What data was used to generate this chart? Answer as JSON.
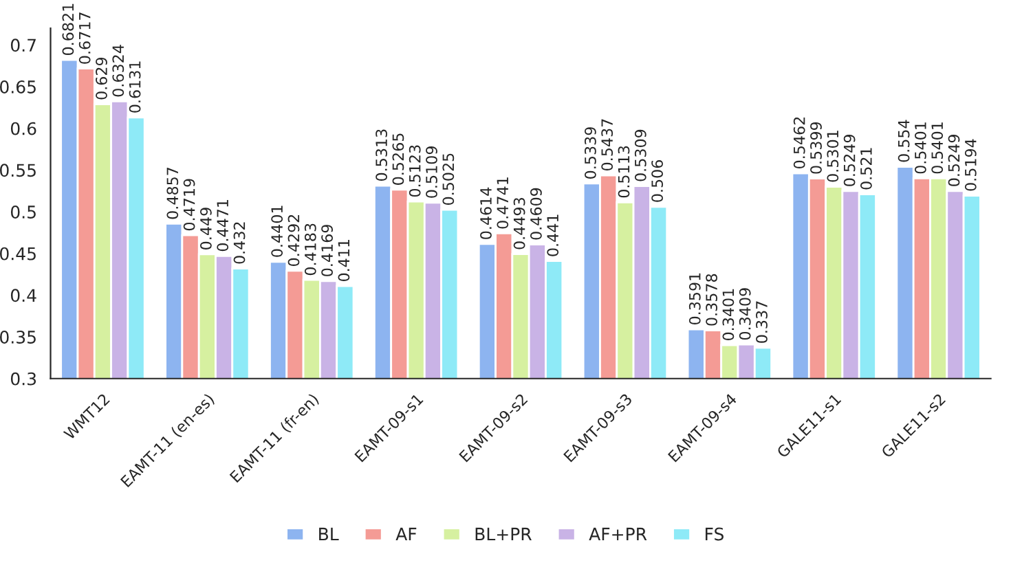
{
  "chart_data": {
    "type": "bar",
    "categories": [
      "WMT12",
      "EAMT-11 (en-es)",
      "EAMT-11 (fr-en)",
      "EAMT-09-s1",
      "EAMT-09-s2",
      "EAMT-09-s3",
      "EAMT-09-s4",
      "GALE11-s1",
      "GALE11-s2"
    ],
    "series": [
      {
        "name": "BL",
        "color": "#8db4f0",
        "values": [
          0.6821,
          0.4857,
          0.4401,
          0.5313,
          0.4614,
          0.5339,
          0.3591,
          0.5462,
          0.554
        ]
      },
      {
        "name": "AF",
        "color": "#f49b95",
        "values": [
          0.6717,
          0.4719,
          0.4292,
          0.5265,
          0.4741,
          0.5437,
          0.3578,
          0.5399,
          0.5401
        ]
      },
      {
        "name": "BL+PR",
        "color": "#d6f0a0",
        "values": [
          0.629,
          0.449,
          0.4183,
          0.5123,
          0.4493,
          0.5113,
          0.3401,
          0.5301,
          0.5401
        ]
      },
      {
        "name": "AF+PR",
        "color": "#c9b3e6",
        "values": [
          0.6324,
          0.4471,
          0.4169,
          0.5109,
          0.4609,
          0.5309,
          0.3409,
          0.5249,
          0.5249
        ]
      },
      {
        "name": "FS",
        "color": "#8eeaf7",
        "values": [
          0.6131,
          0.432,
          0.411,
          0.5025,
          0.441,
          0.506,
          0.337,
          0.521,
          0.5194
        ]
      }
    ],
    "ylim": [
      0.3,
      0.72
    ],
    "yticks": [
      0.3,
      0.35,
      0.4,
      0.45,
      0.5,
      0.55,
      0.6,
      0.65,
      0.7
    ],
    "data_labels": true,
    "grid": false,
    "legend": "bottom"
  }
}
